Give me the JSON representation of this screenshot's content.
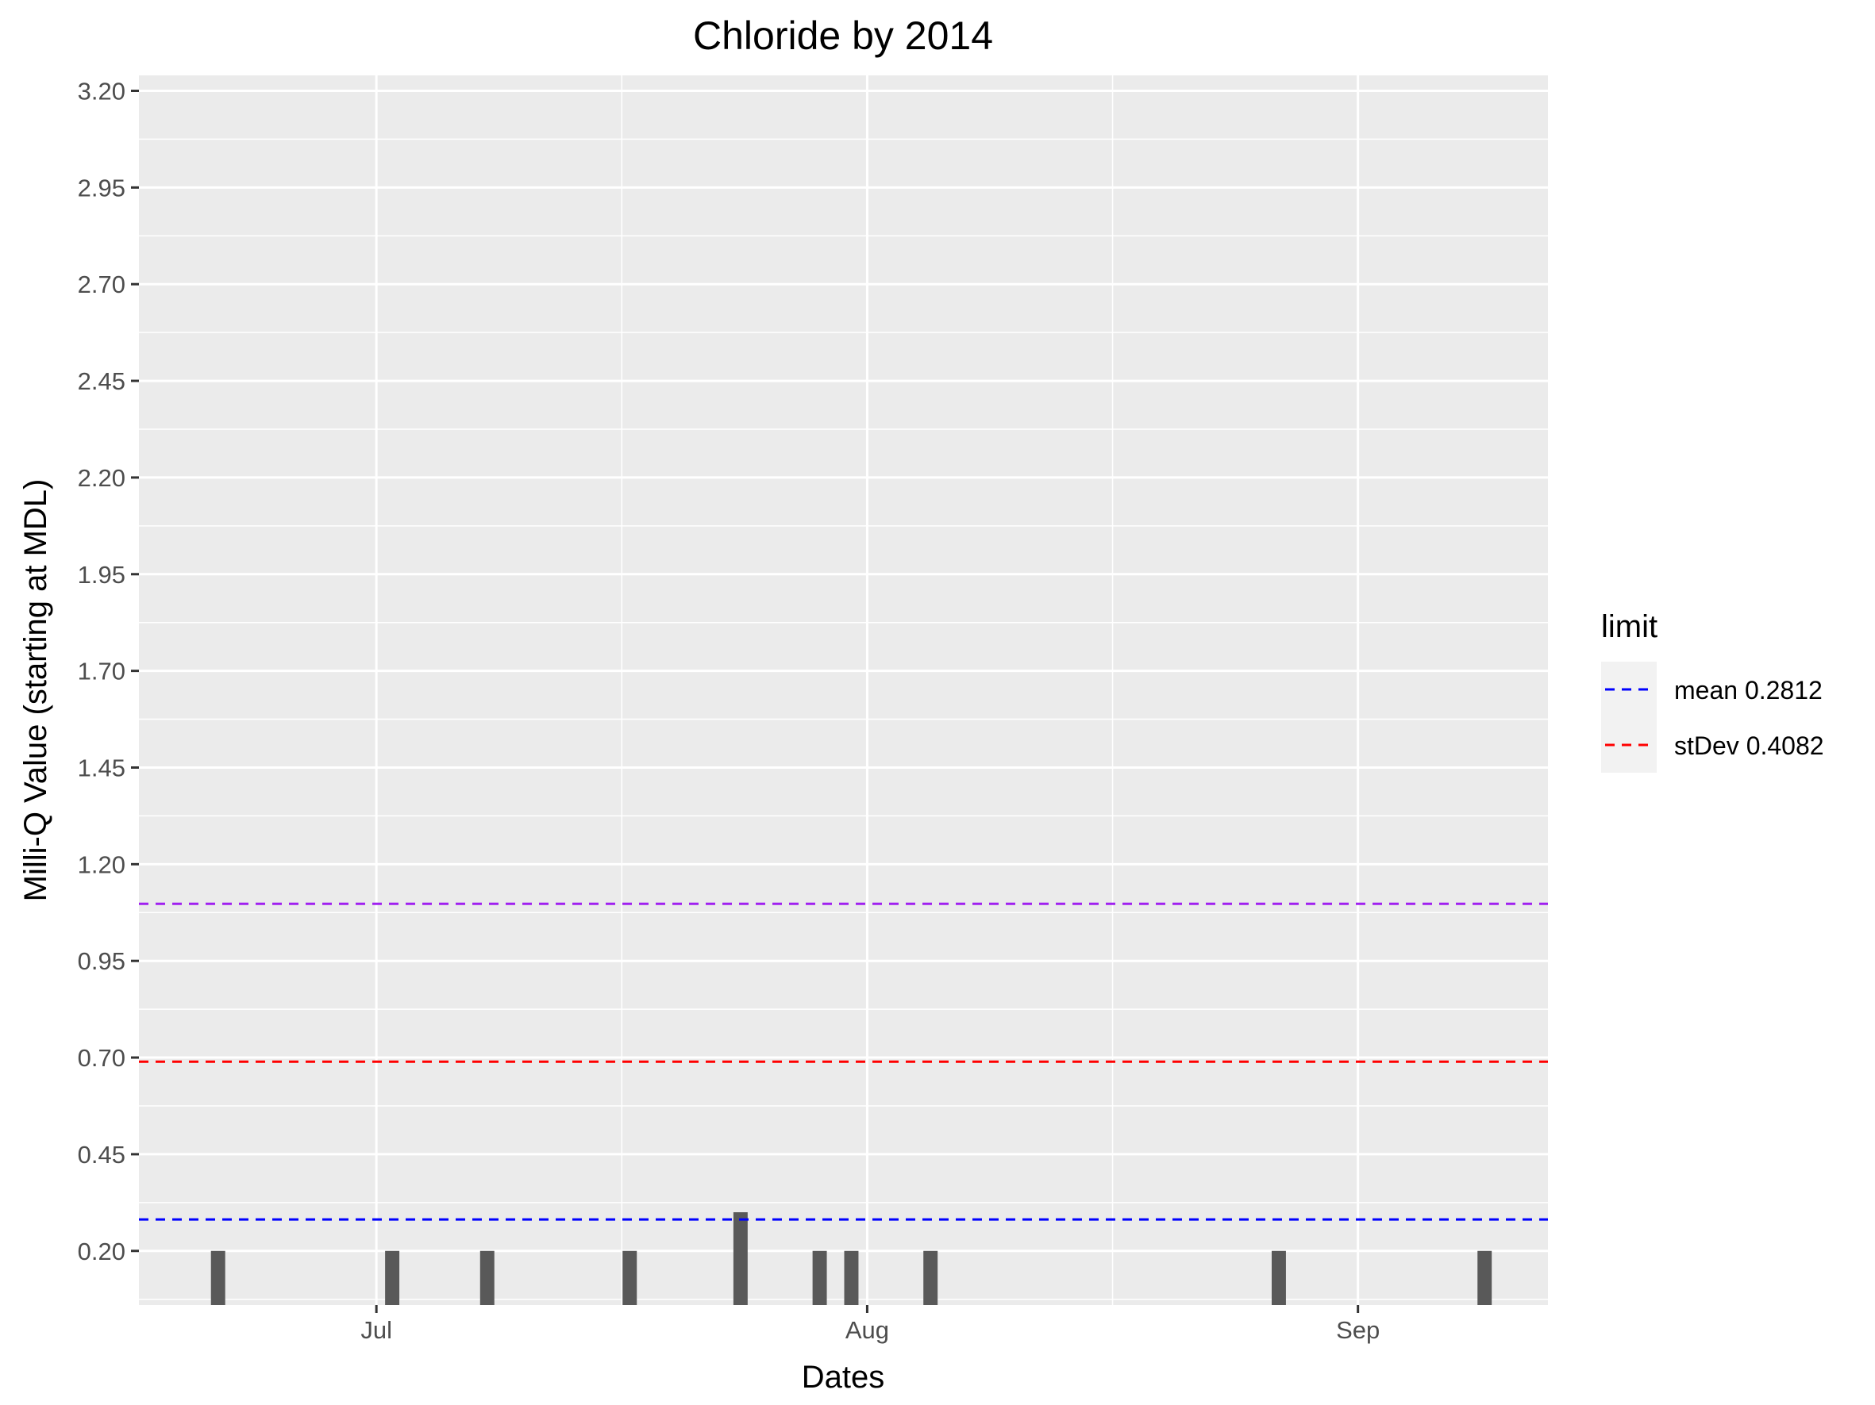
{
  "chart_data": {
    "type": "bar",
    "title": "Chloride by 2014",
    "xlabel": "Dates",
    "ylabel": "Milli-Q Value (starting at MDL)",
    "x_axis_type": "date",
    "xlim": [
      "2014-06-16",
      "2014-09-13"
    ],
    "x_ticks": [
      {
        "date": "2014-07-01",
        "label": "Jul"
      },
      {
        "date": "2014-08-01",
        "label": "Aug"
      },
      {
        "date": "2014-09-01",
        "label": "Sep"
      }
    ],
    "ylim": [
      0.06,
      3.24
    ],
    "y_ticks": [
      "0.20",
      "0.45",
      "0.70",
      "0.95",
      "1.20",
      "1.45",
      "1.70",
      "1.95",
      "2.20",
      "2.45",
      "2.70",
      "2.95",
      "3.20"
    ],
    "bar_baseline": 0.06,
    "series": [
      {
        "points": [
          {
            "date": "2014-06-21",
            "value": 0.2
          },
          {
            "date": "2014-07-02",
            "value": 0.2
          },
          {
            "date": "2014-07-08",
            "value": 0.2
          },
          {
            "date": "2014-07-17",
            "value": 0.2
          },
          {
            "date": "2014-07-24",
            "value": 0.3
          },
          {
            "date": "2014-07-29",
            "value": 0.2
          },
          {
            "date": "2014-07-31",
            "value": 0.2
          },
          {
            "date": "2014-08-05",
            "value": 0.2
          },
          {
            "date": "2014-08-27",
            "value": 0.2
          },
          {
            "date": "2014-09-09",
            "value": 0.2
          }
        ],
        "color": "#595959"
      }
    ],
    "reference_lines": [
      {
        "value": 0.2812,
        "color": "#0000ff",
        "style": "dashed",
        "in_legend": true
      },
      {
        "value": 0.6894,
        "color": "#ff0000",
        "style": "dashed",
        "in_legend": true
      },
      {
        "value": 1.0976,
        "color": "#a020f0",
        "style": "dashed",
        "in_legend": false
      }
    ],
    "legend": {
      "title": "limit",
      "position": "right",
      "entries": [
        {
          "label": "mean 0.2812",
          "color": "#0000ff"
        },
        {
          "label": "stDev 0.4082",
          "color": "#ff0000"
        }
      ]
    },
    "grid": true,
    "panel_background": "#ebebeb"
  }
}
